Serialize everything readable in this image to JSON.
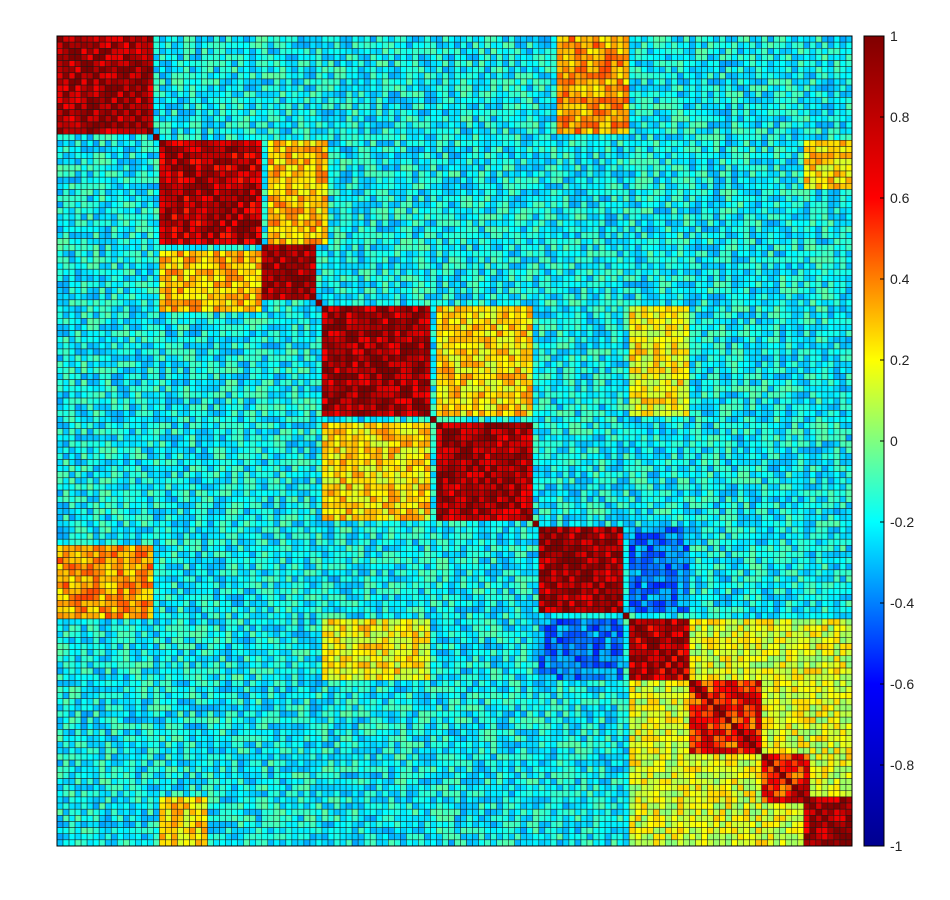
{
  "chart_data": {
    "type": "heatmap",
    "title": "",
    "xlabel": "",
    "ylabel": "",
    "grid": true,
    "size": 132,
    "value_range": [
      -1,
      1
    ],
    "background_value": -0.2,
    "colormap": "jet",
    "colormap_stops": [
      "#00008f",
      "#0000ff",
      "#00ffff",
      "#ffff00",
      "#ff0000",
      "#800000"
    ],
    "colorbar": {
      "placement": "right",
      "ticks": [
        1,
        0.8,
        0.6,
        0.4,
        0.2,
        0,
        -0.2,
        -0.4,
        -0.6,
        -0.8,
        -1
      ],
      "tick_labels": [
        "1",
        "0.8",
        "0.6",
        "0.4",
        "0.2",
        "0",
        "-0.2",
        "-0.4",
        "-0.6",
        "-0.8",
        "-1"
      ]
    },
    "blocks": [
      {
        "start": 0,
        "end": 16,
        "value": 0.85
      },
      {
        "start": 17,
        "end": 34,
        "value": 0.8
      },
      {
        "start": 34,
        "end": 43,
        "value": 0.85
      },
      {
        "start": 44,
        "end": 62,
        "value": 0.85
      },
      {
        "start": 63,
        "end": 79,
        "value": 0.85
      },
      {
        "start": 80,
        "end": 94,
        "value": 0.85
      },
      {
        "start": 95,
        "end": 105,
        "value": 0.8
      },
      {
        "start": 105,
        "end": 117,
        "value": 0.6
      },
      {
        "start": 117,
        "end": 125,
        "value": 0.6
      },
      {
        "start": 124,
        "end": 132,
        "value": 0.85
      }
    ],
    "off_diagonal_regions": [
      {
        "rows": [
          0,
          16
        ],
        "cols": [
          83,
          95
        ],
        "value": 0.35
      },
      {
        "rows": [
          83,
          95
        ],
        "cols": [
          0,
          16
        ],
        "value": 0.35
      },
      {
        "rows": [
          17,
          34
        ],
        "cols": [
          35,
          45
        ],
        "value": 0.3
      },
      {
        "rows": [
          35,
          45
        ],
        "cols": [
          17,
          34
        ],
        "value": 0.3
      },
      {
        "rows": [
          44,
          62
        ],
        "cols": [
          63,
          79
        ],
        "value": 0.25
      },
      {
        "rows": [
          63,
          79
        ],
        "cols": [
          44,
          62
        ],
        "value": 0.25
      },
      {
        "rows": [
          44,
          62
        ],
        "cols": [
          95,
          105
        ],
        "value": 0.2
      },
      {
        "rows": [
          95,
          105
        ],
        "cols": [
          44,
          62
        ],
        "value": 0.2
      },
      {
        "rows": [
          80,
          94
        ],
        "cols": [
          95,
          105
        ],
        "value": -0.4
      },
      {
        "rows": [
          95,
          105
        ],
        "cols": [
          80,
          94
        ],
        "value": -0.4
      },
      {
        "rows": [
          105,
          132
        ],
        "cols": [
          95,
          132
        ],
        "value": 0.15
      },
      {
        "rows": [
          95,
          132
        ],
        "cols": [
          105,
          132
        ],
        "value": 0.15
      },
      {
        "rows": [
          124,
          132
        ],
        "cols": [
          17,
          25
        ],
        "value": 0.25
      },
      {
        "rows": [
          17,
          25
        ],
        "cols": [
          124,
          132
        ],
        "value": 0.25
      }
    ]
  }
}
